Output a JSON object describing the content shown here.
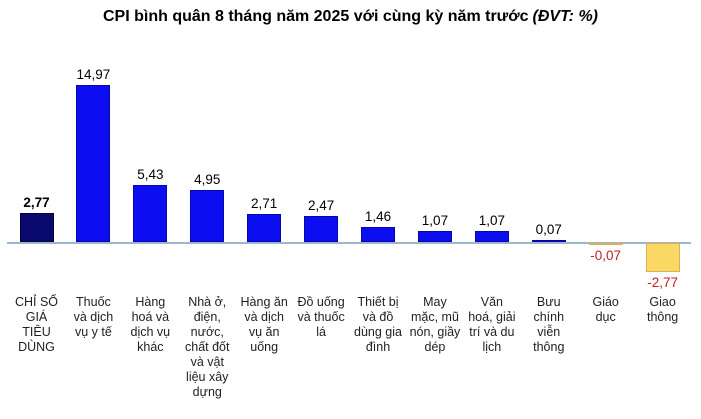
{
  "title": {
    "main": "CPI bình quân 8 tháng năm 2025 với cùng kỳ năm trước",
    "unit": "(ĐVT: %)"
  },
  "chart_data": {
    "type": "bar",
    "title": "CPI bình quân 8 tháng năm 2025 với cùng kỳ năm trước (ĐVT: %)",
    "unit": "%",
    "xlabel": "",
    "ylabel": "",
    "ylim": [
      -3.2,
      15.5
    ],
    "grid": false,
    "legend": false,
    "highlight_index": 0,
    "categories": [
      "CHỈ SỐ GIÁ TIÊU DÙNG",
      "Thuốc và dịch vụ y tế",
      "Hàng hoá và dịch vụ khác",
      "Nhà ở, điện, nước, chất đốt và vật liệu xây dựng",
      "Hàng ăn và dịch vụ ăn uống",
      "Đồ uống và thuốc lá",
      "Thiết bị và đồ dùng gia đình",
      "May mặc, mũ nón, giầy dép",
      "Văn hoá, giải trí và du lịch",
      "Bưu chính viễn thông",
      "Giáo dục",
      "Giao thông"
    ],
    "tick_lines": [
      [
        "CHỈ SỐ",
        "GIÁ",
        "TIÊU",
        "DÙNG"
      ],
      [
        "Thuốc",
        "và dịch",
        "vụ y tế"
      ],
      [
        "Hàng",
        "hoá và",
        "dịch vụ",
        "khác"
      ],
      [
        "Nhà ở,",
        "điện,",
        "nước,",
        "chất đốt",
        "và vật",
        "liệu xây",
        "dựng"
      ],
      [
        "Hàng ăn",
        "và dịch",
        "vụ ăn",
        "uống"
      ],
      [
        "Đồ uống",
        "và thuốc",
        "lá"
      ],
      [
        "Thiết bị",
        "và đồ",
        "dùng gia",
        "đình"
      ],
      [
        "May",
        "mặc, mũ",
        "nón, giầy",
        "dép"
      ],
      [
        "Văn",
        "hoá, giải",
        "trí và du",
        "lịch"
      ],
      [
        "Bưu",
        "chính",
        "viễn",
        "thông"
      ],
      [
        "Giáo",
        "dục"
      ],
      [
        "Giao",
        "thông"
      ]
    ],
    "values": [
      2.77,
      14.97,
      5.43,
      4.95,
      2.71,
      2.47,
      1.46,
      1.07,
      1.07,
      0.07,
      -0.07,
      -2.77
    ],
    "value_labels": [
      "2,77",
      "14,97",
      "5,43",
      "4,95",
      "2,71",
      "2,47",
      "1,46",
      "1,07",
      "1,07",
      "0,07",
      "-0,07",
      "-2,77"
    ],
    "colors": {
      "highlight_bar": "#0a0a6e",
      "positive_bar": "#0d0df2",
      "negative_bar_fill": "#fbd763",
      "negative_bar_border": "#d6b05a",
      "negative_label": "#bf2126",
      "positive_label": "#000000",
      "axis_line": "#9db6ce",
      "title_text": "#000000",
      "category_text": "#1f1f1f"
    }
  }
}
